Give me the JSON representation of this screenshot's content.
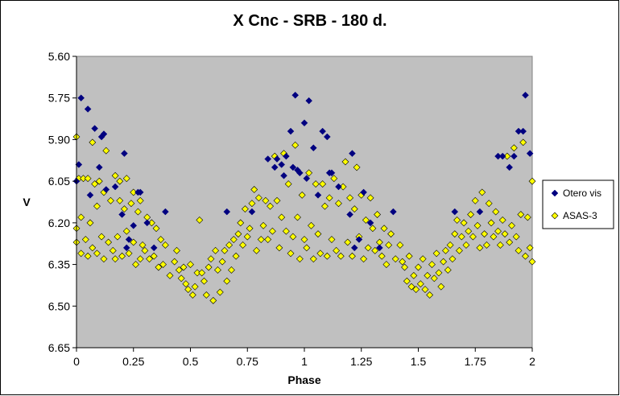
{
  "chart_data": {
    "type": "scatter",
    "title": "X Cnc - SRB - 180 d.",
    "xlabel": "Phase",
    "ylabel": "V",
    "xlim": [
      0,
      2
    ],
    "ylim": [
      6.65,
      5.6
    ],
    "y_inverted": true,
    "x_ticks": [
      "0",
      "0.25",
      "0.5",
      "0.75",
      "1",
      "1.25",
      "1.5",
      "1.75",
      "2"
    ],
    "y_ticks": [
      "5.60",
      "5.75",
      "5.90",
      "6.05",
      "6.20",
      "6.35",
      "6.50",
      "6.65"
    ],
    "grid": false,
    "plot_background": "#c0c0c0",
    "legend_position": "right",
    "series": [
      {
        "name": "Otero vis",
        "color": "#000080",
        "marker": "diamond",
        "points": [
          [
            0.0,
            6.05
          ],
          [
            0.01,
            5.99
          ],
          [
            0.02,
            5.75
          ],
          [
            0.05,
            5.79
          ],
          [
            0.06,
            6.1
          ],
          [
            0.08,
            5.86
          ],
          [
            0.1,
            6.0
          ],
          [
            0.11,
            5.89
          ],
          [
            0.12,
            5.88
          ],
          [
            0.13,
            6.08
          ],
          [
            0.17,
            6.07
          ],
          [
            0.2,
            6.17
          ],
          [
            0.21,
            5.95
          ],
          [
            0.22,
            6.29
          ],
          [
            0.23,
            6.26
          ],
          [
            0.25,
            6.21
          ],
          [
            0.27,
            6.09
          ],
          [
            0.28,
            6.09
          ],
          [
            0.31,
            6.2
          ],
          [
            0.34,
            6.29
          ],
          [
            0.39,
            6.16
          ],
          [
            0.66,
            6.16
          ],
          [
            0.77,
            6.16
          ],
          [
            0.84,
            5.97
          ],
          [
            0.87,
            6.0
          ],
          [
            0.88,
            5.97
          ],
          [
            0.9,
            5.99
          ],
          [
            0.91,
            6.03
          ],
          [
            0.92,
            5.96
          ],
          [
            0.94,
            5.87
          ],
          [
            0.95,
            6.0
          ],
          [
            0.96,
            5.74
          ],
          [
            0.97,
            6.01
          ],
          [
            0.98,
            6.02
          ],
          [
            1.0,
            5.84
          ],
          [
            1.01,
            6.04
          ],
          [
            1.02,
            5.76
          ],
          [
            1.04,
            5.93
          ],
          [
            1.06,
            6.1
          ],
          [
            1.08,
            5.87
          ],
          [
            1.1,
            5.89
          ],
          [
            1.11,
            6.02
          ],
          [
            1.12,
            6.02
          ],
          [
            1.15,
            6.07
          ],
          [
            1.2,
            6.17
          ],
          [
            1.21,
            5.95
          ],
          [
            1.22,
            6.29
          ],
          [
            1.24,
            6.26
          ],
          [
            1.26,
            6.09
          ],
          [
            1.29,
            6.2
          ],
          [
            1.33,
            6.29
          ],
          [
            1.39,
            6.16
          ],
          [
            1.66,
            6.16
          ],
          [
            1.77,
            6.16
          ],
          [
            1.85,
            5.96
          ],
          [
            1.87,
            5.96
          ],
          [
            1.9,
            6.0
          ],
          [
            1.92,
            5.96
          ],
          [
            1.94,
            5.87
          ],
          [
            1.96,
            5.87
          ],
          [
            1.97,
            5.74
          ],
          [
            1.99,
            5.95
          ]
        ]
      },
      {
        "name": "ASAS-3",
        "color": "#ffff00",
        "marker": "diamond",
        "points": [
          [
            0.0,
            6.22
          ],
          [
            0.0,
            6.27
          ],
          [
            0.0,
            5.89
          ],
          [
            0.01,
            6.04
          ],
          [
            0.02,
            6.18
          ],
          [
            0.02,
            6.31
          ],
          [
            0.03,
            6.04
          ],
          [
            0.04,
            6.26
          ],
          [
            0.05,
            6.32
          ],
          [
            0.05,
            6.04
          ],
          [
            0.06,
            6.2
          ],
          [
            0.07,
            6.29
          ],
          [
            0.07,
            5.91
          ],
          [
            0.08,
            6.06
          ],
          [
            0.09,
            6.14
          ],
          [
            0.09,
            6.31
          ],
          [
            0.1,
            6.05
          ],
          [
            0.11,
            6.25
          ],
          [
            0.12,
            6.33
          ],
          [
            0.12,
            6.09
          ],
          [
            0.13,
            5.94
          ],
          [
            0.14,
            6.27
          ],
          [
            0.15,
            6.12
          ],
          [
            0.16,
            6.3
          ],
          [
            0.17,
            6.03
          ],
          [
            0.17,
            6.33
          ],
          [
            0.18,
            6.25
          ],
          [
            0.19,
            6.12
          ],
          [
            0.19,
            6.05
          ],
          [
            0.2,
            6.32
          ],
          [
            0.21,
            6.15
          ],
          [
            0.22,
            6.23
          ],
          [
            0.22,
            6.04
          ],
          [
            0.23,
            6.31
          ],
          [
            0.24,
            6.13
          ],
          [
            0.25,
            6.27
          ],
          [
            0.25,
            6.09
          ],
          [
            0.26,
            6.35
          ],
          [
            0.27,
            6.16
          ],
          [
            0.28,
            6.33
          ],
          [
            0.28,
            6.12
          ],
          [
            0.29,
            6.28
          ],
          [
            0.3,
            6.3
          ],
          [
            0.31,
            6.18
          ],
          [
            0.32,
            6.33
          ],
          [
            0.33,
            6.2
          ],
          [
            0.34,
            6.32
          ],
          [
            0.35,
            6.22
          ],
          [
            0.36,
            6.36
          ],
          [
            0.37,
            6.26
          ],
          [
            0.38,
            6.35
          ],
          [
            0.39,
            6.28
          ],
          [
            0.41,
            6.39
          ],
          [
            0.43,
            6.34
          ],
          [
            0.44,
            6.3
          ],
          [
            0.45,
            6.37
          ],
          [
            0.46,
            6.4
          ],
          [
            0.47,
            6.36
          ],
          [
            0.48,
            6.42
          ],
          [
            0.49,
            6.44
          ],
          [
            0.5,
            6.35
          ],
          [
            0.51,
            6.46
          ],
          [
            0.52,
            6.43
          ],
          [
            0.53,
            6.38
          ],
          [
            0.54,
            6.19
          ],
          [
            0.55,
            6.38
          ],
          [
            0.56,
            6.41
          ],
          [
            0.57,
            6.46
          ],
          [
            0.58,
            6.36
          ],
          [
            0.59,
            6.33
          ],
          [
            0.6,
            6.48
          ],
          [
            0.61,
            6.3
          ],
          [
            0.62,
            6.37
          ],
          [
            0.63,
            6.45
          ],
          [
            0.64,
            6.34
          ],
          [
            0.65,
            6.3
          ],
          [
            0.66,
            6.41
          ],
          [
            0.67,
            6.28
          ],
          [
            0.68,
            6.37
          ],
          [
            0.69,
            6.26
          ],
          [
            0.7,
            6.32
          ],
          [
            0.71,
            6.24
          ],
          [
            0.72,
            6.2
          ],
          [
            0.73,
            6.28
          ],
          [
            0.74,
            6.15
          ],
          [
            0.75,
            6.25
          ],
          [
            0.76,
            6.22
          ],
          [
            0.77,
            6.13
          ],
          [
            0.78,
            6.08
          ],
          [
            0.79,
            6.3
          ],
          [
            0.8,
            6.11
          ],
          [
            0.81,
            6.26
          ],
          [
            0.82,
            6.21
          ],
          [
            0.83,
            6.12
          ],
          [
            0.84,
            6.26
          ],
          [
            0.85,
            6.14
          ],
          [
            0.86,
            6.23
          ],
          [
            0.87,
            5.96
          ],
          [
            0.88,
            6.12
          ],
          [
            0.89,
            6.29
          ],
          [
            0.9,
            6.18
          ],
          [
            0.91,
            5.95
          ],
          [
            0.92,
            6.23
          ],
          [
            0.93,
            6.06
          ],
          [
            0.94,
            6.31
          ],
          [
            0.95,
            6.25
          ],
          [
            0.96,
            5.92
          ],
          [
            0.97,
            6.18
          ],
          [
            0.98,
            6.33
          ],
          [
            0.99,
            6.1
          ],
          [
            1.0,
            6.26
          ],
          [
            1.01,
            6.29
          ],
          [
            1.02,
            6.02
          ],
          [
            1.03,
            6.21
          ],
          [
            1.04,
            6.33
          ],
          [
            1.05,
            6.06
          ],
          [
            1.06,
            6.24
          ],
          [
            1.07,
            6.31
          ],
          [
            1.08,
            6.06
          ],
          [
            1.09,
            6.14
          ],
          [
            1.1,
            6.32
          ],
          [
            1.11,
            6.11
          ],
          [
            1.12,
            6.26
          ],
          [
            1.13,
            6.04
          ],
          [
            1.14,
            6.3
          ],
          [
            1.15,
            6.13
          ],
          [
            1.16,
            6.32
          ],
          [
            1.17,
            6.07
          ],
          [
            1.18,
            5.98
          ],
          [
            1.19,
            6.27
          ],
          [
            1.2,
            6.11
          ],
          [
            1.21,
            6.32
          ],
          [
            1.22,
            6.15
          ],
          [
            1.23,
            6.0
          ],
          [
            1.24,
            6.25
          ],
          [
            1.25,
            6.1
          ],
          [
            1.26,
            6.33
          ],
          [
            1.27,
            6.19
          ],
          [
            1.28,
            6.29
          ],
          [
            1.29,
            6.11
          ],
          [
            1.3,
            6.22
          ],
          [
            1.31,
            6.3
          ],
          [
            1.32,
            6.17
          ],
          [
            1.33,
            6.27
          ],
          [
            1.34,
            6.32
          ],
          [
            1.35,
            6.22
          ],
          [
            1.36,
            6.35
          ],
          [
            1.37,
            6.28
          ],
          [
            1.38,
            6.24
          ],
          [
            1.4,
            6.33
          ],
          [
            1.42,
            6.28
          ],
          [
            1.43,
            6.34
          ],
          [
            1.44,
            6.36
          ],
          [
            1.45,
            6.41
          ],
          [
            1.46,
            6.32
          ],
          [
            1.47,
            6.43
          ],
          [
            1.48,
            6.39
          ],
          [
            1.49,
            6.44
          ],
          [
            1.5,
            6.36
          ],
          [
            1.51,
            6.42
          ],
          [
            1.52,
            6.33
          ],
          [
            1.53,
            6.44
          ],
          [
            1.54,
            6.39
          ],
          [
            1.55,
            6.46
          ],
          [
            1.56,
            6.35
          ],
          [
            1.57,
            6.4
          ],
          [
            1.58,
            6.31
          ],
          [
            1.59,
            6.38
          ],
          [
            1.6,
            6.43
          ],
          [
            1.61,
            6.34
          ],
          [
            1.62,
            6.3
          ],
          [
            1.63,
            6.37
          ],
          [
            1.64,
            6.28
          ],
          [
            1.65,
            6.33
          ],
          [
            1.66,
            6.24
          ],
          [
            1.67,
            6.19
          ],
          [
            1.68,
            6.3
          ],
          [
            1.69,
            6.25
          ],
          [
            1.7,
            6.2
          ],
          [
            1.71,
            6.28
          ],
          [
            1.72,
            6.23
          ],
          [
            1.73,
            6.17
          ],
          [
            1.74,
            6.25
          ],
          [
            1.75,
            6.12
          ],
          [
            1.76,
            6.21
          ],
          [
            1.77,
            6.29
          ],
          [
            1.78,
            6.09
          ],
          [
            1.79,
            6.24
          ],
          [
            1.8,
            6.28
          ],
          [
            1.81,
            6.13
          ],
          [
            1.82,
            6.2
          ],
          [
            1.83,
            6.25
          ],
          [
            1.84,
            6.16
          ],
          [
            1.85,
            6.23
          ],
          [
            1.86,
            6.28
          ],
          [
            1.87,
            6.19
          ],
          [
            1.88,
            6.24
          ],
          [
            1.89,
            5.96
          ],
          [
            1.9,
            6.27
          ],
          [
            1.91,
            6.21
          ],
          [
            1.92,
            5.93
          ],
          [
            1.93,
            6.25
          ],
          [
            1.94,
            6.3
          ],
          [
            1.95,
            6.17
          ],
          [
            1.96,
            5.91
          ],
          [
            1.97,
            6.32
          ],
          [
            1.98,
            6.18
          ],
          [
            1.99,
            6.29
          ],
          [
            2.0,
            6.05
          ],
          [
            2.0,
            6.34
          ]
        ]
      }
    ]
  }
}
